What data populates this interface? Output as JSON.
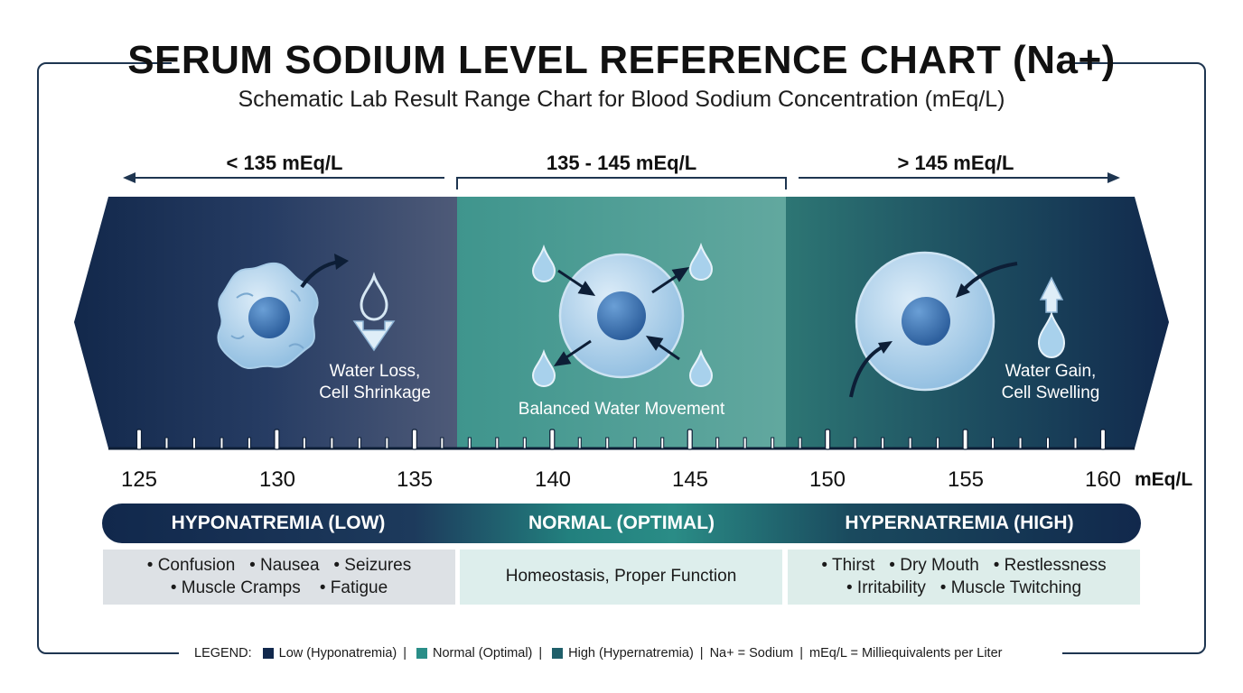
{
  "title": "SERUM SODIUM LEVEL REFERENCE CHART (Na+)",
  "subtitle": "Schematic Lab Result Range Chart for Blood Sodium Concentration (mEq/L)",
  "ranges": {
    "low": "< 135 mEq/L",
    "normal": "135 - 145 mEq/L",
    "high": "> 145 mEq/L"
  },
  "bands": {
    "low_label_1": "Water Loss,",
    "low_label_2": "Cell Shrinkage",
    "normal_label": "Balanced Water Movement",
    "high_label_1": "Water Gain,",
    "high_label_2": "Cell Swelling"
  },
  "axis": {
    "ticks": [
      "125",
      "130",
      "135",
      "140",
      "145",
      "150",
      "155",
      "160"
    ],
    "unit": "mEq/L",
    "min": 125,
    "max": 160
  },
  "categories": {
    "low": "HYPONATREMIA (LOW)",
    "normal": "NORMAL (OPTIMAL)",
    "high": "HYPERNATREMIA (HIGH)"
  },
  "symptoms": {
    "low_line1": "• Confusion   • Nausea   • Seizures",
    "low_line2": "• Muscle Cramps    • Fatigue",
    "normal_line1": "Homeostasis, Proper Function",
    "high_line1": "• Thirst   • Dry Mouth   • Restlessness",
    "high_line2": "• Irritability   • Muscle Twitching"
  },
  "legend": {
    "prefix": "LEGEND:",
    "low": "Low (Hyponatremia)",
    "normal": "Normal (Optimal)",
    "high": "High (Hypernatremia)",
    "na": "Na+ = Sodium",
    "meq": "mEq/L = Milliequivalents per Liter"
  },
  "colors": {
    "low": "#11284c",
    "normal": "#2a8e88",
    "high": "#1f5f6a"
  }
}
